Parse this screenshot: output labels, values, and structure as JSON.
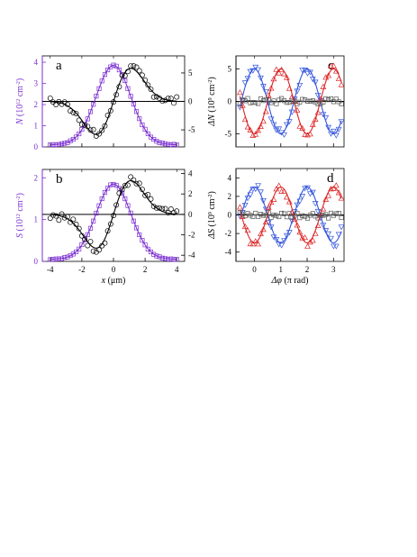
{
  "colors": {
    "purple": "#7B2FD0",
    "black": "#000000",
    "blue": "#3355DD",
    "red": "#DD2222",
    "gray": "#555555"
  },
  "chart_data": [
    {
      "panel": "a",
      "type": "line",
      "left_axis": {
        "label_sym": "N",
        "label_rest": " (10",
        "label_exp": "12",
        "label_rest2": " cm",
        "label_exp2": "-2",
        "label_close": ")",
        "range": [
          0,
          4.3
        ],
        "ticks": [
          0,
          1,
          2,
          3,
          4
        ]
      },
      "right_axis": {
        "range": [
          -8,
          8
        ],
        "ticks": [
          -5,
          0,
          5
        ]
      },
      "x_axis": {
        "range": [
          -4.5,
          4.5
        ],
        "ticks": [
          -4,
          -2,
          0,
          2,
          4
        ],
        "tick_labels": []
      },
      "series": [
        {
          "axis": "left",
          "color": "purple",
          "marker": "square",
          "shape": "gauss",
          "amp": 3.75,
          "base": 0.1,
          "sigma": 1.1,
          "x_range": [
            -4,
            4
          ],
          "n": 45
        },
        {
          "axis": "right",
          "color": "black",
          "marker": "circle",
          "shape": "dgauss",
          "amp": 5.8,
          "sigma": 1.1,
          "x_range": [
            -4,
            4
          ],
          "n": 45
        }
      ],
      "zero_line": {
        "axis": "right",
        "value": 0
      }
    },
    {
      "panel": "b",
      "type": "line",
      "left_axis": {
        "label_sym": "S",
        "label_rest": " (10",
        "label_exp": "12",
        "label_rest2": " cm",
        "label_exp2": "-2",
        "label_close": ")",
        "range": [
          0,
          2.2
        ],
        "ticks": [
          0,
          1,
          2
        ]
      },
      "right_axis": {
        "range": [
          -4.6,
          4.4
        ],
        "ticks": [
          -4,
          -2,
          0,
          2,
          4
        ]
      },
      "x_axis": {
        "range": [
          -4.5,
          4.5
        ],
        "ticks": [
          -4,
          -2,
          0,
          2,
          4
        ],
        "tick_labels": [
          "-4",
          "-2",
          "0",
          "2",
          "4"
        ],
        "label_sym": "x",
        "label_rest": " (μm)"
      },
      "series": [
        {
          "axis": "left",
          "color": "purple",
          "marker": "square",
          "shape": "gauss",
          "amp": 1.8,
          "base": 0.05,
          "sigma": 1.1,
          "x_range": [
            -4,
            4
          ],
          "n": 45
        },
        {
          "axis": "right",
          "color": "black",
          "marker": "circle",
          "shape": "dgauss",
          "amp": 3.3,
          "sigma": 1.1,
          "x_range": [
            -4,
            4
          ],
          "n": 45
        }
      ],
      "zero_line": {
        "axis": "right",
        "value": 0
      }
    },
    {
      "panel": "c",
      "type": "scatter",
      "left_axis": {
        "label_sym": "ΔN",
        "label_rest": " (10",
        "label_exp": "9",
        "label_rest2": " cm",
        "label_exp2": "-2",
        "label_close": ")",
        "range": [
          -7,
          7
        ],
        "ticks": [
          -5,
          0,
          5
        ]
      },
      "x_axis": {
        "range": [
          -0.7,
          3.4
        ],
        "ticks": [
          0,
          1,
          2,
          3
        ],
        "tick_labels": []
      },
      "series": [
        {
          "color": "blue",
          "marker": "tri-down",
          "shape": "cos",
          "amp": 5,
          "x_range": [
            -0.55,
            3.3
          ],
          "n": 40
        },
        {
          "color": "red",
          "marker": "tri-up",
          "shape": "negcos",
          "amp": 5,
          "x_range": [
            -0.55,
            3.3
          ],
          "n": 40
        },
        {
          "color": "gray",
          "marker": "square",
          "shape": "flat",
          "amp": 0,
          "x_range": [
            -0.55,
            3.3
          ],
          "n": 40
        }
      ],
      "zero_line": {
        "value": 0
      }
    },
    {
      "panel": "d",
      "type": "scatter",
      "left_axis": {
        "label_sym": "ΔS",
        "label_rest": " (10",
        "label_exp": "9",
        "label_rest2": " cm",
        "label_exp2": "-2",
        "label_close": ")",
        "range": [
          -5,
          5
        ],
        "ticks": [
          -4,
          -2,
          0,
          2,
          4
        ]
      },
      "x_axis": {
        "range": [
          -0.7,
          3.4
        ],
        "ticks": [
          0,
          1,
          2,
          3
        ],
        "tick_labels": [
          "0",
          "1",
          "2",
          "3"
        ],
        "label_sym": "Δφ",
        "label_rest": " (π rad)"
      },
      "series": [
        {
          "color": "blue",
          "marker": "tri-down",
          "shape": "cos",
          "amp": 3,
          "x_range": [
            -0.55,
            3.3
          ],
          "n": 40
        },
        {
          "color": "red",
          "marker": "tri-up",
          "shape": "negcos",
          "amp": 3,
          "x_range": [
            -0.55,
            3.3
          ],
          "n": 40
        },
        {
          "color": "gray",
          "marker": "square",
          "shape": "flat",
          "amp": 0,
          "x_range": [
            -0.55,
            3.3
          ],
          "n": 40
        }
      ],
      "zero_line": {
        "value": 0
      }
    }
  ]
}
